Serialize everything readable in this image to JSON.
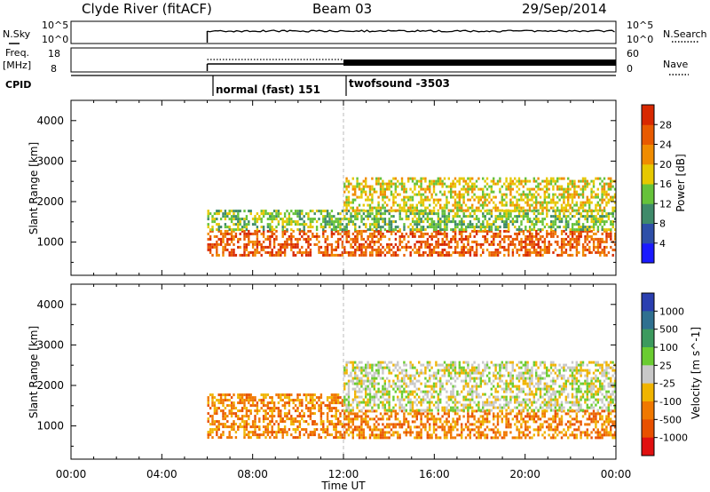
{
  "header": {
    "site": "Clyde River (fitACF)",
    "beam": "Beam 03",
    "date": "29/Sep/2014"
  },
  "params": {
    "nsky_label": "N.Sky",
    "freq_label_line1": "Freq.",
    "freq_label_line2": "[MHz]",
    "cpid_label": "CPID",
    "nsearch_label": "N.Search",
    "nave_label": "Nave",
    "nsky_ticks": [
      "10^5",
      "10^0"
    ],
    "nsearch_ticks": [
      "10^5",
      "10^0"
    ],
    "freq_ticks": [
      "18",
      "8"
    ],
    "nave_ticks": [
      "60",
      "0"
    ],
    "cpid_segments": [
      {
        "start_hour": 6.0,
        "label": "normal (fast) 151"
      },
      {
        "start_hour": 12.0,
        "label": "twofsound -3503"
      }
    ]
  },
  "chart_data": [
    {
      "type": "heatmap",
      "name": "power",
      "ylabel": "Slant Range [km]",
      "xlabel": "Time UT",
      "xlim_hours": [
        0,
        24
      ],
      "ylim_km": [
        180,
        4500
      ],
      "yticks": [
        "1000",
        "2000",
        "3000",
        "4000"
      ],
      "xticks": [
        "00:00",
        "04:00",
        "08:00",
        "12:00",
        "16:00",
        "20:00",
        "00:00"
      ],
      "colorbar": {
        "label": "Power [dB]",
        "ticks": [
          "4",
          "8",
          "12",
          "16",
          "20",
          "24",
          "28"
        ],
        "colors": [
          "#1a1aff",
          "#2e4fa8",
          "#3f8a6a",
          "#66c23a",
          "#e6c800",
          "#f08c00",
          "#e85a00",
          "#d82800"
        ]
      },
      "echo_bands": [
        {
          "start_hour": 6.0,
          "end_hour": 24.0,
          "range_km": [
            700,
            1300
          ],
          "level": "28"
        },
        {
          "start_hour": 6.0,
          "end_hour": 24.0,
          "range_km": [
            1300,
            1800
          ],
          "level": "16"
        },
        {
          "start_hour": 12.0,
          "end_hour": 24.0,
          "range_km": [
            1800,
            2600
          ],
          "level": "20"
        }
      ]
    },
    {
      "type": "heatmap",
      "name": "velocity",
      "ylabel": "Slant Range [km]",
      "xlabel": "Time UT",
      "xlim_hours": [
        0,
        24
      ],
      "ylim_km": [
        180,
        4500
      ],
      "yticks": [
        "1000",
        "2000",
        "3000",
        "4000"
      ],
      "xticks": [
        "00:00",
        "04:00",
        "08:00",
        "12:00",
        "16:00",
        "20:00",
        "00:00"
      ],
      "colorbar": {
        "label": "Velocity [m s^-1]",
        "ticks": [
          "1000",
          "500",
          "100",
          "25",
          "-25",
          "-100",
          "-500",
          "-1000"
        ],
        "colors": [
          "#2a3fb0",
          "#2f7090",
          "#3c9a5e",
          "#6acc30",
          "#c8c8c8",
          "#f0b400",
          "#f07800",
          "#e85000",
          "#e01010"
        ]
      },
      "echo_bands": [
        {
          "start_hour": 6.0,
          "end_hour": 12.0,
          "range_km": [
            700,
            1800
          ],
          "level": "-100"
        },
        {
          "start_hour": 12.0,
          "end_hour": 24.0,
          "range_km": [
            700,
            1400
          ],
          "level": "-100"
        },
        {
          "start_hour": 12.0,
          "end_hour": 24.0,
          "range_km": [
            1400,
            2600
          ],
          "level": "25"
        }
      ]
    }
  ]
}
